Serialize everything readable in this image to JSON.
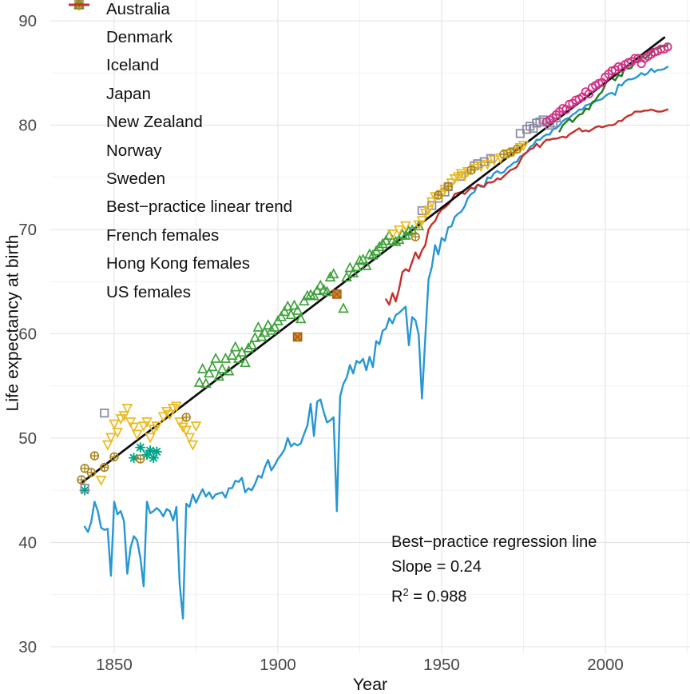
{
  "axes": {
    "x_title": "Year",
    "y_title": "Life expectancy at birth"
  },
  "annotation": {
    "line1": "Best−practice regression line",
    "line2": "Slope = 0.24",
    "r2_base": "R",
    "r2_sup": "2",
    "r2_rest": " = 0.988"
  },
  "legend": {
    "items": [
      {
        "label": "Australia",
        "marker": "square-x",
        "color": "#a55e12",
        "fill": "#d98630"
      },
      {
        "label": "Denmark",
        "marker": "asterisk",
        "color": "#00a38a"
      },
      {
        "label": "Iceland",
        "marker": "square",
        "color": "#8d8da4"
      },
      {
        "label": "Japan",
        "marker": "circle",
        "color": "#d23085"
      },
      {
        "label": "New Zealand",
        "marker": "triangle-up",
        "color": "#3ea23a"
      },
      {
        "label": "Norway",
        "marker": "triangle-down",
        "color": "#eaba1f"
      },
      {
        "label": "Sweden",
        "marker": "circle-plus",
        "color": "#a9831b"
      },
      {
        "label": "Best−practice linear trend",
        "marker": "line",
        "color": "#0d0d0d"
      },
      {
        "label": "French females",
        "marker": "line",
        "color": "#2697d3"
      },
      {
        "label": "Hong Kong females",
        "marker": "line",
        "color": "#217c21"
      },
      {
        "label": "US females",
        "marker": "line",
        "color": "#c5302c"
      }
    ]
  },
  "chart_data": {
    "type": "scatter+line",
    "title": "",
    "xlabel": "Year",
    "ylabel": "Life expectancy at birth",
    "xlim": [
      1830.5,
      2025.85
    ],
    "ylim": [
      29.3,
      92.0
    ],
    "x_ticks": [
      1850,
      1900,
      1950,
      2000
    ],
    "x_minor_ticks": [
      1875,
      1925,
      1975,
      2025
    ],
    "y_ticks": [
      30,
      40,
      50,
      60,
      70,
      80,
      90
    ],
    "y_minor_ticks": [
      35,
      45,
      55,
      65,
      75,
      85
    ],
    "grid": "major+minor on white, no axis lines",
    "legend_position": "top-left inside panel",
    "annotation": {
      "text": [
        "Best−practice regression line",
        "Slope = 0.24",
        "R² = 0.988"
      ],
      "x": 1935,
      "y": 41
    },
    "scatter_series": [
      {
        "name": "Australia",
        "marker": "square-x",
        "color": "#a55e12",
        "fill": "#d98630",
        "points": [
          [
            1906,
            59.7
          ],
          [
            1918,
            63.8
          ]
        ]
      },
      {
        "name": "Denmark",
        "marker": "asterisk",
        "color": "#00a38a",
        "points": [
          [
            1841,
            45.0
          ],
          [
            1856,
            48.1
          ],
          [
            1858,
            49.1
          ],
          [
            1860,
            48.4
          ],
          [
            1861,
            48.8
          ],
          [
            1862,
            48.1
          ],
          [
            1863,
            48.7
          ]
        ]
      },
      {
        "name": "Iceland",
        "marker": "square",
        "color": "#8d8da4",
        "points": [
          [
            1841,
            45.2
          ],
          [
            1847,
            52.4
          ],
          [
            1944,
            71.8
          ],
          [
            1947,
            72.3
          ],
          [
            1949,
            73.0
          ],
          [
            1951,
            73.6
          ],
          [
            1952,
            74.1
          ],
          [
            1956,
            75.1
          ],
          [
            1960,
            76.1
          ],
          [
            1961,
            76.3
          ],
          [
            1963,
            76.5
          ],
          [
            1965,
            76.8
          ],
          [
            1974,
            79.2
          ],
          [
            1976,
            79.6
          ],
          [
            1977,
            79.9
          ],
          [
            1978,
            79.7
          ],
          [
            1979,
            80.2
          ],
          [
            1980,
            80.3
          ],
          [
            1981,
            80.5
          ],
          [
            1983,
            80.0
          ],
          [
            1984,
            80.2
          ],
          [
            1985,
            80.7
          ]
        ]
      },
      {
        "name": "Japan",
        "marker": "circle",
        "color": "#d23085",
        "start_year": 1982,
        "values": [
          80.3,
          80.5,
          80.7,
          81.0,
          81.3,
          81.6,
          81.5,
          82.0,
          82.1,
          82.4,
          82.5,
          82.7,
          83.2,
          83.0,
          83.6,
          83.8,
          84.0,
          84.1,
          84.6,
          84.9,
          85.2,
          85.3,
          85.6,
          85.5,
          85.8,
          86.0,
          86.1,
          86.4,
          86.4,
          85.9,
          86.4,
          86.6,
          86.8,
          87.0,
          87.1,
          87.3,
          87.3,
          87.5
        ]
      },
      {
        "name": "New Zealand",
        "marker": "triangle-up",
        "color": "#3ea23a",
        "points": [
          [
            1876,
            55.3
          ],
          [
            1877,
            56.6
          ],
          [
            1878,
            55.2
          ],
          [
            1879,
            56.2
          ],
          [
            1880,
            56.8
          ],
          [
            1881,
            57.6
          ],
          [
            1882,
            55.9
          ],
          [
            1883,
            56.6
          ],
          [
            1884,
            57.6
          ],
          [
            1885,
            56.4
          ],
          [
            1886,
            57.9
          ],
          [
            1887,
            58.7
          ],
          [
            1888,
            57.6
          ],
          [
            1889,
            58.2
          ],
          [
            1890,
            57.2
          ],
          [
            1891,
            58.6
          ],
          [
            1892,
            58.9
          ],
          [
            1893,
            59.6
          ],
          [
            1894,
            60.6
          ],
          [
            1895,
            59.7
          ],
          [
            1896,
            60.1
          ],
          [
            1897,
            60.8
          ],
          [
            1898,
            60.3
          ],
          [
            1899,
            60.6
          ],
          [
            1900,
            61.2
          ],
          [
            1901,
            61.6
          ],
          [
            1902,
            62.1
          ],
          [
            1903,
            62.6
          ],
          [
            1904,
            61.8
          ],
          [
            1905,
            62.7
          ],
          [
            1906,
            62.2
          ],
          [
            1907,
            61.4
          ],
          [
            1908,
            63.1
          ],
          [
            1909,
            63.6
          ],
          [
            1910,
            63.7
          ],
          [
            1911,
            63.6
          ],
          [
            1912,
            64.1
          ],
          [
            1913,
            64.6
          ],
          [
            1914,
            64.2
          ],
          [
            1915,
            64.0
          ],
          [
            1916,
            65.4
          ],
          [
            1917,
            65.7
          ],
          [
            1920,
            62.4
          ],
          [
            1921,
            65.4
          ],
          [
            1922,
            66.3
          ],
          [
            1923,
            65.8
          ],
          [
            1924,
            66.4
          ],
          [
            1925,
            67.0
          ],
          [
            1926,
            67.1
          ],
          [
            1927,
            66.5
          ],
          [
            1928,
            67.6
          ],
          [
            1929,
            67.5
          ],
          [
            1930,
            67.9
          ],
          [
            1931,
            68.3
          ],
          [
            1932,
            68.6
          ],
          [
            1933,
            68.9
          ],
          [
            1934,
            69.4
          ],
          [
            1935,
            68.9
          ],
          [
            1936,
            68.8
          ],
          [
            1937,
            69.0
          ],
          [
            1938,
            69.5
          ],
          [
            1939,
            69.4
          ],
          [
            1940,
            69.8
          ],
          [
            1941,
            69.9
          ],
          [
            1943,
            70.3
          ]
        ]
      },
      {
        "name": "Norway",
        "marker": "triangle-down",
        "color": "#eaba1f",
        "points": [
          [
            1846,
            46.0
          ],
          [
            1848,
            49.4
          ],
          [
            1849,
            50.1
          ],
          [
            1850,
            51.4
          ],
          [
            1851,
            50.6
          ],
          [
            1852,
            51.9
          ],
          [
            1853,
            52.2
          ],
          [
            1854,
            52.9
          ],
          [
            1855,
            51.6
          ],
          [
            1856,
            51.1
          ],
          [
            1857,
            50.4
          ],
          [
            1859,
            51.2
          ],
          [
            1860,
            51.6
          ],
          [
            1861,
            50.1
          ],
          [
            1862,
            50.9
          ],
          [
            1863,
            51.2
          ],
          [
            1865,
            52.1
          ],
          [
            1866,
            52.6
          ],
          [
            1867,
            52.3
          ],
          [
            1868,
            52.9
          ],
          [
            1869,
            53.1
          ],
          [
            1870,
            51.6
          ],
          [
            1871,
            51.1
          ],
          [
            1872,
            50.8
          ],
          [
            1873,
            50.1
          ],
          [
            1874,
            49.4
          ],
          [
            1875,
            51.2
          ],
          [
            1935,
            69.6
          ],
          [
            1937,
            70.0
          ],
          [
            1939,
            70.4
          ],
          [
            1943,
            70.5
          ],
          [
            1944,
            70.9
          ],
          [
            1945,
            71.6
          ],
          [
            1946,
            71.9
          ],
          [
            1947,
            72.7
          ],
          [
            1948,
            73.2
          ],
          [
            1950,
            73.4
          ],
          [
            1951,
            73.9
          ],
          [
            1953,
            74.5
          ],
          [
            1954,
            74.9
          ],
          [
            1955,
            75.1
          ],
          [
            1956,
            75.4
          ],
          [
            1957,
            75.2
          ],
          [
            1958,
            75.6
          ],
          [
            1960,
            75.9
          ],
          [
            1962,
            76.1
          ],
          [
            1964,
            76.3
          ],
          [
            1966,
            76.7
          ],
          [
            1968,
            76.9
          ],
          [
            1970,
            77.3
          ],
          [
            1972,
            77.5
          ],
          [
            1974,
            77.9
          ],
          [
            1975,
            78.1
          ]
        ]
      },
      {
        "name": "Sweden",
        "marker": "circle-plus",
        "color": "#a9831b",
        "points": [
          [
            1840,
            46.0
          ],
          [
            1841,
            47.1
          ],
          [
            1843,
            46.7
          ],
          [
            1844,
            48.3
          ],
          [
            1847,
            47.2
          ],
          [
            1850,
            48.2
          ],
          [
            1858,
            48.0
          ],
          [
            1872,
            52.0
          ],
          [
            1942,
            69.3
          ],
          [
            1949,
            73.3
          ],
          [
            1952,
            74.1
          ],
          [
            1959,
            75.7
          ],
          [
            1969,
            77.2
          ],
          [
            1971,
            77.4
          ],
          [
            1973,
            77.7
          ]
        ]
      }
    ],
    "line_series": [
      {
        "name": "Best−practice linear trend",
        "color": "#0d0d0d",
        "width": 2.7,
        "slope": 0.24,
        "r2": 0.988,
        "points": [
          [
            1840,
            45.7
          ],
          [
            2018,
            88.4
          ]
        ]
      },
      {
        "name": "French females",
        "color": "#2697d3",
        "width": 2.4,
        "start_year": 1841,
        "values": [
          41.5,
          41.0,
          42.0,
          43.9,
          43.0,
          41.4,
          41.2,
          41.3,
          36.8,
          43.9,
          42.7,
          43.0,
          42.0,
          37.0,
          39.5,
          40.6,
          40.2,
          38.5,
          35.8,
          43.9,
          42.8,
          43.0,
          43.3,
          43.0,
          42.5,
          43.2,
          43.0,
          42.1,
          43.4,
          36.0,
          32.7,
          43.7,
          43.4,
          44.6,
          43.8,
          44.5,
          45.1,
          44.4,
          44.8,
          44.2,
          44.6,
          44.7,
          44.8,
          44.3,
          45.2,
          45.2,
          45.9,
          45.8,
          46.2,
          44.8,
          45.2,
          45.0,
          45.6,
          46.4,
          46.2,
          47.2,
          47.9,
          46.9,
          47.4,
          48.0,
          48.4,
          48.9,
          50.0,
          49.2,
          49.5,
          49.3,
          49.5,
          50.4,
          51.2,
          53.3,
          50.2,
          53.5,
          53.7,
          52.5,
          51.5,
          51.7,
          52.0,
          43.0,
          54.0,
          55.2,
          55.8,
          57.0,
          56.2,
          57.4,
          57.2,
          57.6,
          56.5,
          57.8,
          56.8,
          59.3,
          59.0,
          60.3,
          60.5,
          61.5,
          61.0,
          61.8,
          62.0,
          62.3,
          62.6,
          58.9,
          61.6,
          61.3,
          59.9,
          53.8,
          59.6,
          65.2,
          66.4,
          68.5,
          67.6,
          69.2,
          68.9,
          70.2,
          70.3,
          71.2,
          71.5,
          71.7,
          72.2,
          73.0,
          73.4,
          73.6,
          74.3,
          74.1,
          74.1,
          75.0,
          74.9,
          75.4,
          75.6,
          75.4,
          75.5,
          75.9,
          76.1,
          76.4,
          76.5,
          77.0,
          77.1,
          77.4,
          77.9,
          78.1,
          78.6,
          78.6,
          78.9,
          79.1,
          79.1,
          79.6,
          79.7,
          80.0,
          80.4,
          80.6,
          80.7,
          81.0,
          81.2,
          81.5,
          81.5,
          81.9,
          82.0,
          82.1,
          82.3,
          82.4,
          82.5,
          82.8,
          83.0,
          83.1,
          82.9,
          83.9,
          83.8,
          84.2,
          84.4,
          84.4,
          84.5,
          84.7,
          85.0,
          84.8,
          85.0,
          85.4,
          85.1,
          85.3,
          85.3,
          85.4,
          85.6
        ]
      },
      {
        "name": "Hong Kong females",
        "color": "#217c21",
        "width": 2.4,
        "start_year": 1986,
        "values": [
          79.4,
          80.0,
          80.3,
          80.6,
          80.3,
          80.7,
          81.0,
          81.1,
          81.6,
          81.5,
          82.2,
          82.4,
          82.9,
          83.2,
          83.9,
          84.6,
          84.5,
          84.3,
          84.8,
          84.7,
          85.6,
          85.4,
          85.5,
          86.1,
          86.0,
          86.7,
          86.4,
          86.6,
          86.9,
          87.3,
          87.3,
          87.6,
          87.5,
          87.7
        ]
      },
      {
        "name": "US females",
        "color": "#c5302c",
        "width": 2.4,
        "start_year": 1933,
        "values": [
          63.3,
          62.8,
          63.9,
          63.1,
          64.3,
          65.9,
          66.2,
          66.0,
          66.9,
          67.8,
          67.2,
          68.0,
          68.5,
          70.0,
          70.5,
          70.8,
          71.5,
          71.9,
          72.1,
          72.4,
          72.8,
          73.4,
          73.5,
          73.6,
          73.4,
          73.7,
          74.0,
          73.9,
          74.3,
          74.2,
          74.1,
          74.5,
          74.5,
          74.6,
          74.9,
          74.8,
          75.1,
          75.4,
          75.7,
          75.8,
          76.0,
          76.6,
          77.2,
          77.4,
          77.7,
          77.8,
          78.2,
          77.9,
          78.3,
          78.6,
          78.6,
          78.7,
          78.7,
          78.8,
          78.9,
          78.8,
          79.1,
          79.3,
          79.5,
          79.7,
          79.4,
          79.5,
          79.4,
          79.6,
          79.8,
          79.9,
          79.8,
          79.9,
          80.0,
          80.0,
          80.1,
          80.4,
          80.4,
          80.7,
          80.9,
          81.0,
          81.3,
          81.3,
          81.3,
          81.4,
          81.4,
          81.5,
          81.4,
          81.3,
          81.3,
          81.4,
          81.5
        ]
      }
    ],
    "style": {
      "grid_major_color": "#e4e4e4",
      "grid_minor_color": "#f2f2f2",
      "tick_label_color": "#474747"
    }
  }
}
